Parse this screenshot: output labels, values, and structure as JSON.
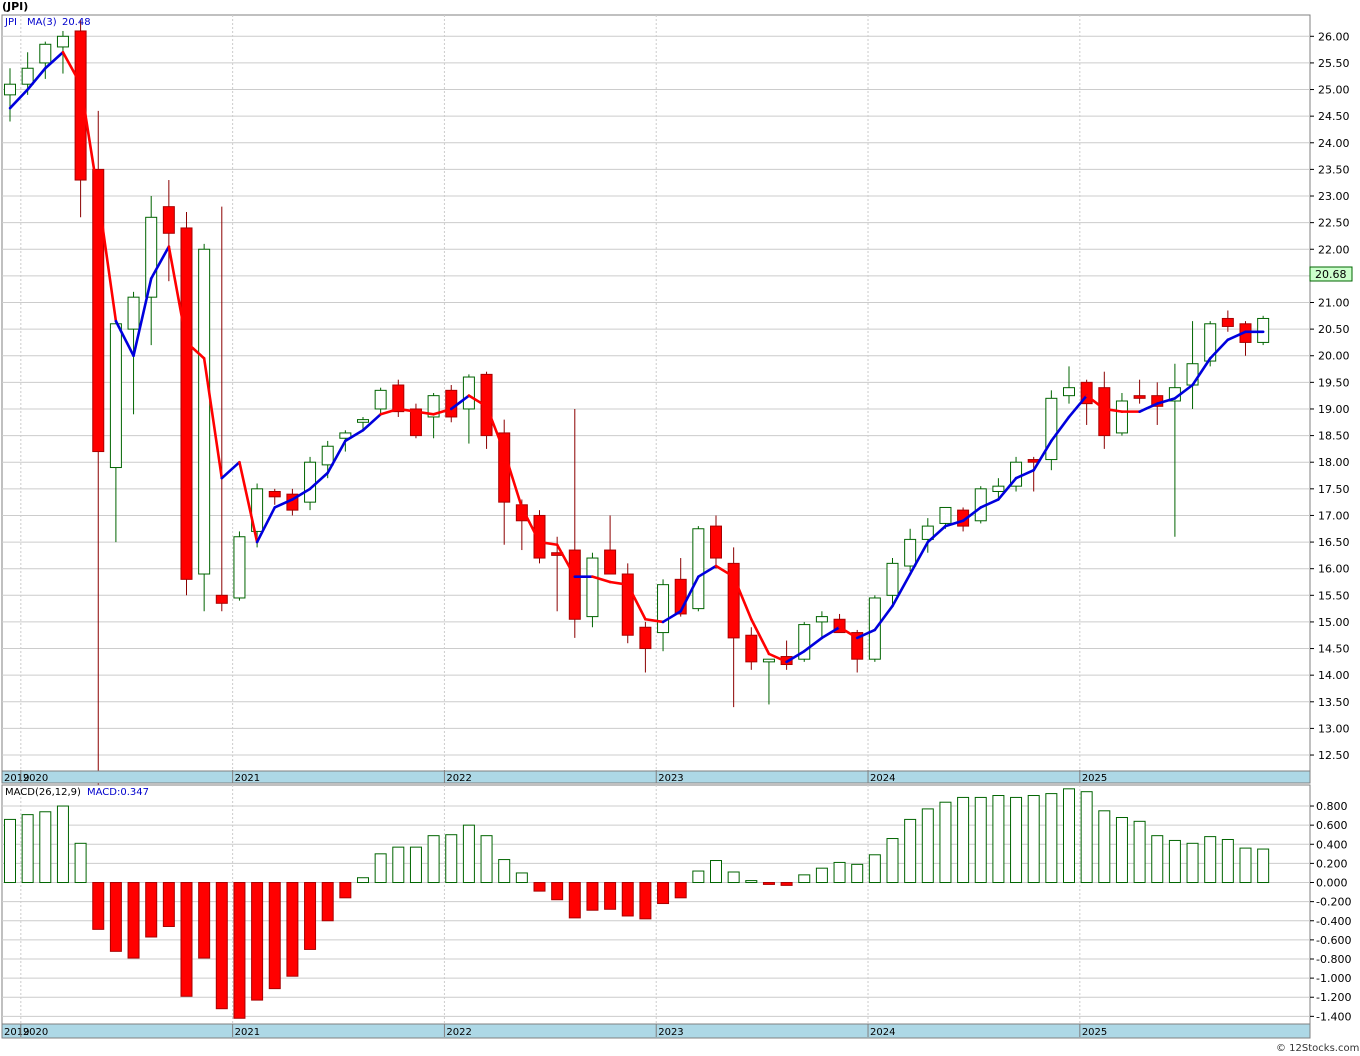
{
  "title": "(JPI)",
  "copyright": "© 12Stocks.com",
  "colors": {
    "up": "#006400",
    "down": "#ff0000",
    "ma_up": "#0000dd",
    "ma_down": "#ff0000",
    "grid": "#cccccc",
    "axis_band": "#add8e6",
    "last_box": "#ccffcc"
  },
  "chart_data": [
    {
      "type": "candlestick",
      "legend": {
        "symbol": "JPI",
        "ma_label": "MA(3)",
        "ma_value": "20.48"
      },
      "last_price_label": "20.68",
      "x_axis_labels": [
        "2019",
        "2020",
        "2021",
        "2022",
        "2023",
        "2024",
        "2025"
      ],
      "y_ticks": [
        "12.50",
        "13.00",
        "13.50",
        "14.00",
        "14.50",
        "15.00",
        "15.50",
        "16.00",
        "16.50",
        "17.00",
        "17.50",
        "18.00",
        "18.50",
        "19.00",
        "19.50",
        "20.00",
        "20.50",
        "21.00",
        "21.50",
        "22.00",
        "22.50",
        "23.00",
        "23.50",
        "24.00",
        "24.50",
        "25.00",
        "25.50",
        "26.00"
      ],
      "ylim": [
        12.2,
        26.4
      ],
      "first_month": "2019-12",
      "candles": [
        {
          "o": 24.9,
          "h": 25.4,
          "l": 24.4,
          "c": 25.1
        },
        {
          "o": 25.1,
          "h": 25.7,
          "l": 24.9,
          "c": 25.4
        },
        {
          "o": 25.5,
          "h": 25.9,
          "l": 25.2,
          "c": 25.85
        },
        {
          "o": 25.8,
          "h": 26.1,
          "l": 25.3,
          "c": 26.0
        },
        {
          "o": 26.1,
          "h": 26.3,
          "l": 22.6,
          "c": 23.3
        },
        {
          "o": 23.5,
          "h": 24.6,
          "l": 11.6,
          "c": 18.2
        },
        {
          "o": 17.9,
          "h": 20.7,
          "l": 16.5,
          "c": 20.6
        },
        {
          "o": 20.5,
          "h": 21.2,
          "l": 18.9,
          "c": 21.1
        },
        {
          "o": 21.1,
          "h": 23.0,
          "l": 20.2,
          "c": 22.6
        },
        {
          "o": 22.8,
          "h": 23.3,
          "l": 21.4,
          "c": 22.3
        },
        {
          "o": 22.4,
          "h": 22.7,
          "l": 15.5,
          "c": 15.8
        },
        {
          "o": 15.9,
          "h": 22.1,
          "l": 15.2,
          "c": 22.0
        },
        {
          "o": 15.5,
          "h": 22.8,
          "l": 15.2,
          "c": 15.35
        },
        {
          "o": 15.45,
          "h": 16.7,
          "l": 15.4,
          "c": 16.6
        },
        {
          "o": 16.7,
          "h": 17.6,
          "l": 16.4,
          "c": 17.5
        },
        {
          "o": 17.45,
          "h": 17.5,
          "l": 17.2,
          "c": 17.35
        },
        {
          "o": 17.4,
          "h": 17.5,
          "l": 17.0,
          "c": 17.1
        },
        {
          "o": 17.25,
          "h": 18.1,
          "l": 17.1,
          "c": 18.0
        },
        {
          "o": 17.95,
          "h": 18.4,
          "l": 17.7,
          "c": 18.3
        },
        {
          "o": 18.45,
          "h": 18.6,
          "l": 18.2,
          "c": 18.55
        },
        {
          "o": 18.75,
          "h": 18.85,
          "l": 18.6,
          "c": 18.8
        },
        {
          "o": 19.0,
          "h": 19.4,
          "l": 18.9,
          "c": 19.35
        },
        {
          "o": 19.45,
          "h": 19.55,
          "l": 18.85,
          "c": 18.95
        },
        {
          "o": 19.0,
          "h": 19.1,
          "l": 18.45,
          "c": 18.5
        },
        {
          "o": 18.85,
          "h": 19.3,
          "l": 18.45,
          "c": 19.25
        },
        {
          "o": 19.35,
          "h": 19.45,
          "l": 18.75,
          "c": 18.85
        },
        {
          "o": 19.0,
          "h": 19.65,
          "l": 18.35,
          "c": 19.6
        },
        {
          "o": 19.65,
          "h": 19.7,
          "l": 18.25,
          "c": 18.5
        },
        {
          "o": 18.55,
          "h": 18.8,
          "l": 16.45,
          "c": 17.25
        },
        {
          "o": 17.2,
          "h": 17.3,
          "l": 16.35,
          "c": 16.9
        },
        {
          "o": 17.0,
          "h": 17.1,
          "l": 16.1,
          "c": 16.2
        },
        {
          "o": 16.3,
          "h": 16.6,
          "l": 15.2,
          "c": 16.25
        },
        {
          "o": 16.35,
          "h": 19.0,
          "l": 14.7,
          "c": 15.05
        },
        {
          "o": 15.1,
          "h": 16.3,
          "l": 14.9,
          "c": 16.2
        },
        {
          "o": 16.35,
          "h": 17.0,
          "l": 15.9,
          "c": 15.9
        },
        {
          "o": 15.9,
          "h": 16.1,
          "l": 14.6,
          "c": 14.75
        },
        {
          "o": 14.9,
          "h": 15.0,
          "l": 14.05,
          "c": 14.5
        },
        {
          "o": 14.8,
          "h": 15.8,
          "l": 14.45,
          "c": 15.7
        },
        {
          "o": 15.8,
          "h": 16.2,
          "l": 15.1,
          "c": 15.15
        },
        {
          "o": 15.25,
          "h": 16.8,
          "l": 15.2,
          "c": 16.75
        },
        {
          "o": 16.8,
          "h": 17.0,
          "l": 16.0,
          "c": 16.2
        },
        {
          "o": 16.1,
          "h": 16.4,
          "l": 13.4,
          "c": 14.7
        },
        {
          "o": 14.75,
          "h": 14.9,
          "l": 14.1,
          "c": 14.25
        },
        {
          "o": 14.25,
          "h": 14.3,
          "l": 13.45,
          "c": 14.3
        },
        {
          "o": 14.35,
          "h": 14.65,
          "l": 14.1,
          "c": 14.2
        },
        {
          "o": 14.3,
          "h": 15.0,
          "l": 14.25,
          "c": 14.95
        },
        {
          "o": 15.0,
          "h": 15.2,
          "l": 14.7,
          "c": 15.1
        },
        {
          "o": 15.05,
          "h": 15.15,
          "l": 14.8,
          "c": 14.8
        },
        {
          "o": 14.8,
          "h": 14.85,
          "l": 14.05,
          "c": 14.3
        },
        {
          "o": 14.3,
          "h": 15.5,
          "l": 14.25,
          "c": 15.45
        },
        {
          "o": 15.5,
          "h": 16.2,
          "l": 15.3,
          "c": 16.1
        },
        {
          "o": 16.05,
          "h": 16.75,
          "l": 15.95,
          "c": 16.55
        },
        {
          "o": 16.55,
          "h": 16.95,
          "l": 16.3,
          "c": 16.8
        },
        {
          "o": 16.85,
          "h": 17.15,
          "l": 16.75,
          "c": 17.15
        },
        {
          "o": 17.1,
          "h": 17.15,
          "l": 16.7,
          "c": 16.8
        },
        {
          "o": 16.9,
          "h": 17.55,
          "l": 16.85,
          "c": 17.5
        },
        {
          "o": 17.45,
          "h": 17.7,
          "l": 17.3,
          "c": 17.55
        },
        {
          "o": 17.55,
          "h": 18.1,
          "l": 17.45,
          "c": 18.0
        },
        {
          "o": 18.05,
          "h": 18.1,
          "l": 17.45,
          "c": 18.0
        },
        {
          "o": 18.05,
          "h": 19.35,
          "l": 17.85,
          "c": 19.2
        },
        {
          "o": 19.25,
          "h": 19.8,
          "l": 19.1,
          "c": 19.4
        },
        {
          "o": 19.5,
          "h": 19.55,
          "l": 18.7,
          "c": 19.1
        },
        {
          "o": 19.4,
          "h": 19.7,
          "l": 18.25,
          "c": 18.5
        },
        {
          "o": 18.55,
          "h": 19.3,
          "l": 18.5,
          "c": 19.15
        },
        {
          "o": 19.25,
          "h": 19.55,
          "l": 19.1,
          "c": 19.2
        },
        {
          "o": 19.25,
          "h": 19.5,
          "l": 18.7,
          "c": 19.05
        },
        {
          "o": 19.15,
          "h": 19.85,
          "l": 16.6,
          "c": 19.4
        },
        {
          "o": 19.45,
          "h": 20.65,
          "l": 19.0,
          "c": 19.85
        },
        {
          "o": 19.9,
          "h": 20.65,
          "l": 19.8,
          "c": 20.6
        },
        {
          "o": 20.7,
          "h": 20.85,
          "l": 20.45,
          "c": 20.55
        },
        {
          "o": 20.6,
          "h": 20.65,
          "l": 20.0,
          "c": 20.25
        },
        {
          "o": 20.25,
          "h": 20.75,
          "l": 20.2,
          "c": 20.7
        }
      ],
      "ma3": [
        24.65,
        25.0,
        25.4,
        25.7,
        25.1,
        23.0,
        20.65,
        20.0,
        21.45,
        22.05,
        20.25,
        19.95,
        17.7,
        18.0,
        16.5,
        17.15,
        17.3,
        17.5,
        17.8,
        18.4,
        18.6,
        18.9,
        19.0,
        18.95,
        18.9,
        19.0,
        19.25,
        19.05,
        18.2,
        17.15,
        16.5,
        16.45,
        15.85,
        15.85,
        15.75,
        15.7,
        15.05,
        15.0,
        15.2,
        15.85,
        16.05,
        15.85,
        15.05,
        14.4,
        14.25,
        14.45,
        14.7,
        14.9,
        14.7,
        14.85,
        15.3,
        15.9,
        16.5,
        16.8,
        16.9,
        17.15,
        17.3,
        17.7,
        17.85,
        18.4,
        18.85,
        19.25,
        19.0,
        18.95,
        18.95,
        19.1,
        19.2,
        19.45,
        19.95,
        20.3,
        20.45,
        20.45
      ],
      "ma_colors": [
        "up",
        "up",
        "up",
        "up",
        "down",
        "down",
        "down",
        "up",
        "up",
        "up",
        "down",
        "down",
        "down",
        "up",
        "down",
        "up",
        "up",
        "up",
        "up",
        "up",
        "up",
        "up",
        "down",
        "down",
        "down",
        "down",
        "up",
        "down",
        "down",
        "down",
        "down",
        "down",
        "down",
        "up",
        "down",
        "down",
        "down",
        "down",
        "up",
        "up",
        "up",
        "down",
        "down",
        "down",
        "down",
        "up",
        "up",
        "up",
        "down",
        "up",
        "up",
        "up",
        "up",
        "up",
        "up",
        "up",
        "up",
        "up",
        "up",
        "up",
        "up",
        "up",
        "down",
        "down",
        "down",
        "up",
        "up",
        "up",
        "up",
        "up",
        "up",
        "up"
      ]
    },
    {
      "type": "bar",
      "legend": {
        "label": "MACD(26,12,9)",
        "value_label": "MACD:0.347"
      },
      "x_axis_labels": [
        "2019",
        "2020",
        "2021",
        "2022",
        "2023",
        "2024",
        "2025"
      ],
      "y_ticks": [
        "-1.400",
        "-1.200",
        "-1.000",
        "-0.800",
        "-0.600",
        "-0.400",
        "-0.200",
        "0.000",
        "0.200",
        "0.400",
        "0.600",
        "0.800"
      ],
      "ylim": [
        -1.48,
        1.02
      ],
      "values": [
        0.66,
        0.71,
        0.74,
        0.8,
        0.41,
        -0.49,
        -0.72,
        -0.79,
        -0.57,
        -0.46,
        -1.19,
        -0.79,
        -1.32,
        -1.42,
        -1.23,
        -1.11,
        -0.98,
        -0.7,
        -0.4,
        -0.16,
        0.05,
        0.3,
        0.37,
        0.37,
        0.49,
        0.5,
        0.6,
        0.49,
        0.24,
        0.1,
        -0.09,
        -0.18,
        -0.37,
        -0.29,
        -0.28,
        -0.35,
        -0.38,
        -0.22,
        -0.16,
        0.12,
        0.23,
        0.11,
        0.02,
        -0.02,
        -0.03,
        0.08,
        0.15,
        0.21,
        0.19,
        0.29,
        0.46,
        0.66,
        0.77,
        0.84,
        0.89,
        0.89,
        0.91,
        0.89,
        0.91,
        0.93,
        0.98,
        0.95,
        0.75,
        0.68,
        0.64,
        0.49,
        0.44,
        0.41,
        0.48,
        0.45,
        0.36,
        0.35
      ]
    }
  ]
}
